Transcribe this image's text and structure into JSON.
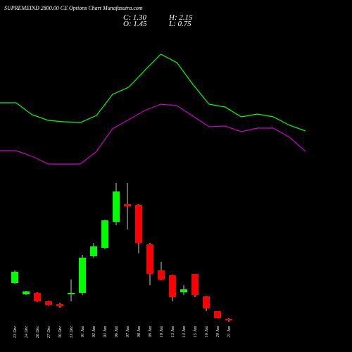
{
  "chart_data": {
    "type": "candlestick",
    "title": "SUPREMEIND 2800.00 CE Options Chart Munafasutra.com",
    "annotations": [
      "C: 1.30",
      "O: 1.45",
      "H: 2.15",
      "L: 0.75"
    ],
    "categories": [
      "23 Dec",
      "24 Dec",
      "26 Dec",
      "27 Dec",
      "30 Dec",
      "31 Dec",
      "01 Jan",
      "02 Jan",
      "03 Jan",
      "06 Jan",
      "07 Jan",
      "08 Jan",
      "09 Jan",
      "10 Jan",
      "13 Jan",
      "14 Jan",
      "15 Jan",
      "16 Jan",
      "20 Jan",
      "21 Jan"
    ],
    "open": [
      6.8,
      5.2,
      5.4,
      4.2,
      3.8,
      5.2,
      5.4,
      10.6,
      11.8,
      15.5,
      18.0,
      17.9,
      12.3,
      8.6,
      7.9,
      5.5,
      8.1,
      4.9,
      2.8,
      1.7
    ],
    "high": [
      8.6,
      5.7,
      5.5,
      4.3,
      4.0,
      7.3,
      10.8,
      12.5,
      15.8,
      21.0,
      21.0,
      18.0,
      12.5,
      9.8,
      8.0,
      6.5,
      8.1,
      5.0,
      2.8,
      1.8
    ],
    "low": [
      6.7,
      5.1,
      4.1,
      3.6,
      3.3,
      4.2,
      5.1,
      10.4,
      11.6,
      15.0,
      14.4,
      11.0,
      6.5,
      7.2,
      4.2,
      5.1,
      4.8,
      2.8,
      1.8,
      1.3
    ],
    "close": [
      8.4,
      5.6,
      4.2,
      3.7,
      3.5,
      5.4,
      10.4,
      12.0,
      15.7,
      19.8,
      17.7,
      12.5,
      8.1,
      7.3,
      4.8,
      5.9,
      5.1,
      3.2,
      1.8,
      1.5
    ],
    "up_color": "#00ff00",
    "down_color": "#ff0000",
    "lines": [
      {
        "color": "#00ff00",
        "values": [
          32.4,
          32.4,
          30.7,
          29.9,
          29.7,
          29.6,
          30.6,
          33.6,
          34.6,
          37.0,
          39.3,
          38.1,
          35.0,
          32.2,
          31.8,
          30.4,
          30.8,
          30.4,
          29.2,
          28.4
        ]
      },
      {
        "color": "#cc00cc",
        "values": [
          25.6,
          25.6,
          24.8,
          23.7,
          23.7,
          23.7,
          25.5,
          28.7,
          30.0,
          31.3,
          32.2,
          32.0,
          30.5,
          29.0,
          29.1,
          28.3,
          28.8,
          28.8,
          27.5,
          25.5
        ]
      }
    ],
    "ylim": [
      0,
      45
    ]
  }
}
